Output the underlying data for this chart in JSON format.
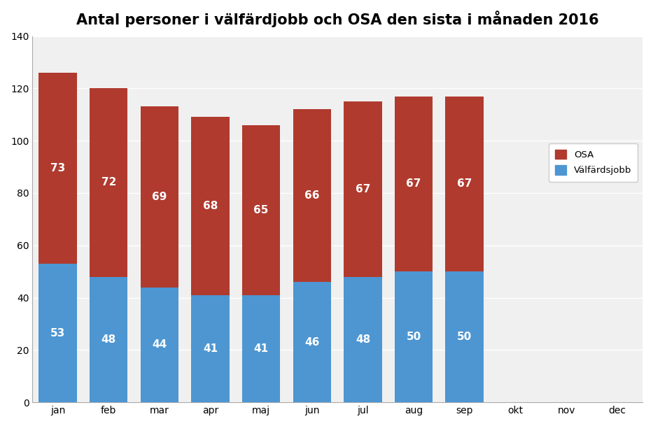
{
  "title": "Antal personer i välfärdjobb och OSA den sista i månaden 2016",
  "categories": [
    "jan",
    "feb",
    "mar",
    "apr",
    "maj",
    "jun",
    "jul",
    "aug",
    "sep",
    "okt",
    "nov",
    "dec"
  ],
  "valfardsjobb": [
    53,
    48,
    44,
    41,
    41,
    46,
    48,
    50,
    50,
    0,
    0,
    0
  ],
  "osa": [
    73,
    72,
    69,
    68,
    65,
    66,
    67,
    67,
    67,
    0,
    0,
    0
  ],
  "color_valfardsjobb": "#4D96D2",
  "color_osa": "#B03A2E",
  "ylim": [
    0,
    140
  ],
  "yticks": [
    0,
    20,
    40,
    60,
    80,
    100,
    120,
    140
  ],
  "legend_osa": "OSA",
  "legend_valfardsjobb": "Välfärdsjobb",
  "background_color": "#FFFFFF",
  "plot_bg_color": "#F0F0F0",
  "grid_color": "#FFFFFF",
  "label_color_white": "#FFFFFF",
  "bar_width": 0.75,
  "title_fontsize": 15,
  "label_fontsize": 11,
  "tick_fontsize": 10
}
